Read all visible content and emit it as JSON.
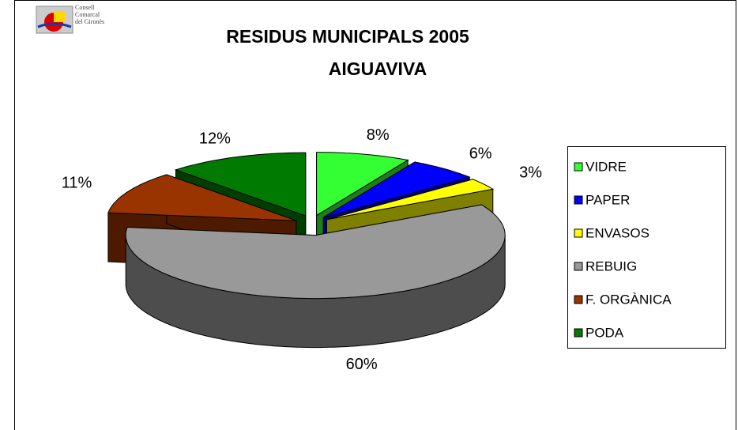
{
  "logo": {
    "text": [
      "Consell",
      "Comarcal",
      "del Gironès"
    ]
  },
  "chart_data": {
    "type": "pie",
    "title": [
      "RESIDUS MUNICIPALS 2005",
      "AIGUAVIVA"
    ],
    "categories": [
      "VIDRE",
      "PAPER",
      "ENVASOS",
      "REBUIG",
      "F. ORGÀNICA",
      "PODA"
    ],
    "values": [
      8,
      6,
      3,
      60,
      11,
      12
    ],
    "value_labels": [
      "8%",
      "6%",
      "3%",
      "60%",
      "11%",
      "12%"
    ],
    "colors": [
      "#33ff33",
      "#0000ff",
      "#ffff00",
      "#999999",
      "#993300",
      "#007a00"
    ],
    "legend": "right"
  }
}
